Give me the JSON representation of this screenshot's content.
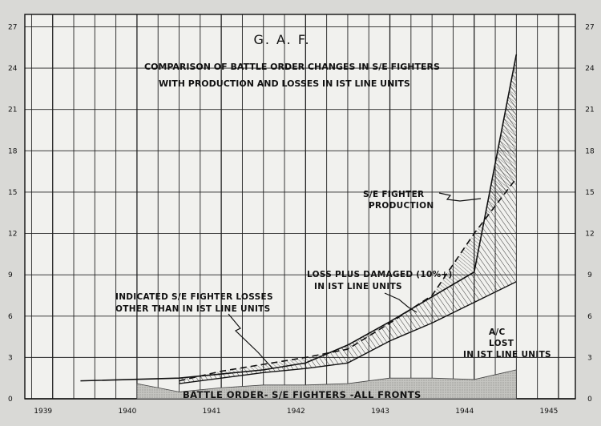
{
  "chart_data": {
    "type": "area",
    "title": "G. A. F.",
    "subtitle_lines": [
      "COMPARISON OF BATTLE ORDER CHANGES IN S/E FIGHTERS",
      "WITH PRODUCTION AND LOSSES IN IST LINE UNITS"
    ],
    "x_tick_labels": [
      "1939",
      "1940",
      "1941",
      "1942",
      "1943",
      "1944",
      "1945"
    ],
    "x_tick_positions": [
      1939.0,
      1940.0,
      1941.0,
      1942.0,
      1943.0,
      1944.0,
      1945.0
    ],
    "y_tick_labels": [
      "0",
      "3",
      "6",
      "9",
      "12",
      "15",
      "18",
      "21",
      "24",
      "27"
    ],
    "ylim": [
      0,
      27.9
    ],
    "xlim": [
      1938.67,
      1945.2
    ],
    "grid": true,
    "colors": {
      "background": "#d9d9d6",
      "plot": "#f2f2ef",
      "ink": "#111111",
      "stipple": "#aaaaaa"
    },
    "series": [
      {
        "name": "BATTLE ORDER- S/E FIGHTERS -ALL FRONTS",
        "x": [
          1940.0,
          1940.5,
          1941.0,
          1941.5,
          1942.0,
          1942.5,
          1943.0,
          1943.5,
          1944.0,
          1944.5
        ],
        "values": [
          1.1,
          0.5,
          0.8,
          1.0,
          1.0,
          1.1,
          1.5,
          1.5,
          1.4,
          2.1
        ]
      },
      {
        "x": [
          1939.33,
          1940.5,
          1941.0,
          1941.5,
          1942.0,
          1942.5,
          1943.0,
          1943.5,
          1944.0,
          1944.5
        ],
        "values": [
          1.3,
          1.5,
          1.8,
          2.1,
          2.6,
          3.9,
          5.6,
          7.4,
          9.2,
          25.0
        ]
      },
      {
        "x": [
          1940.5,
          1941.0,
          1941.5,
          1942.0,
          1942.5,
          1943.0,
          1943.5,
          1944.0,
          1944.5
        ],
        "values": [
          1.1,
          1.5,
          1.9,
          2.2,
          2.6,
          4.2,
          5.5,
          7.0,
          8.5
        ]
      },
      {
        "x": [
          1940.5,
          1941.0,
          1941.5,
          1942.0,
          1942.5,
          1943.0,
          1943.5,
          1944.0,
          1944.5
        ],
        "values": [
          1.3,
          2.0,
          2.5,
          3.0,
          3.6,
          5.5,
          7.5,
          12.0,
          16.0
        ]
      }
    ],
    "annotations": {
      "production": [
        "S/E FIGHTER",
        "PRODUCTION"
      ],
      "loss_damaged": [
        "LOSS PLUS DAMAGED (10%+)",
        "IN IST LINE UNITS"
      ],
      "other_losses": [
        "INDICATED S/E FIGHTER LOSSES",
        "OTHER THAN IN IST LINE UNITS"
      ],
      "ac_lost": [
        "A/C",
        "LOST",
        "IN IST LINE UNITS"
      ],
      "battle_order": "BATTLE ORDER- S/E FIGHTERS -ALL FRONTS"
    }
  }
}
